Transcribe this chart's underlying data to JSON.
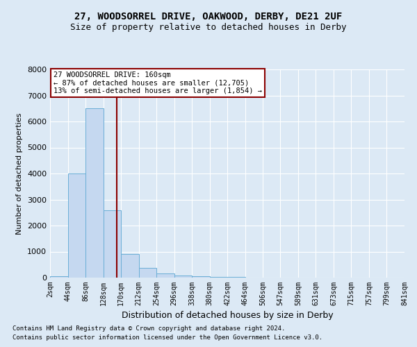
{
  "title_line1": "27, WOODSORREL DRIVE, OAKWOOD, DERBY, DE21 2UF",
  "title_line2": "Size of property relative to detached houses in Derby",
  "xlabel": "Distribution of detached houses by size in Derby",
  "ylabel": "Number of detached properties",
  "bin_edges": [
    2,
    44,
    86,
    128,
    170,
    212,
    254,
    296,
    338,
    380,
    422,
    464,
    506,
    547,
    589,
    631,
    673,
    715,
    757,
    799,
    841
  ],
  "bar_heights": [
    50,
    4000,
    6500,
    2600,
    900,
    380,
    160,
    80,
    55,
    30,
    15,
    5,
    3,
    2,
    2,
    1,
    1,
    1,
    1,
    1
  ],
  "bar_color": "#c5d8f0",
  "bar_edge_color": "#6aaed6",
  "vline_x": 160,
  "vline_color": "#8b0000",
  "ylim": [
    0,
    8000
  ],
  "yticks": [
    0,
    1000,
    2000,
    3000,
    4000,
    5000,
    6000,
    7000,
    8000
  ],
  "annotation_text": "27 WOODSORREL DRIVE: 160sqm\n← 87% of detached houses are smaller (12,705)\n13% of semi-detached houses are larger (1,854) →",
  "annotation_box_color": "#ffffff",
  "annotation_box_edge_color": "#8b0000",
  "footer_line1": "Contains HM Land Registry data © Crown copyright and database right 2024.",
  "footer_line2": "Contains public sector information licensed under the Open Government Licence v3.0.",
  "background_color": "#dce9f5",
  "plot_background_color": "#dce9f5",
  "grid_color": "#ffffff",
  "title_fontsize": 10,
  "subtitle_fontsize": 9,
  "ylabel_fontsize": 8,
  "xlabel_fontsize": 9,
  "tick_fontsize": 7,
  "ytick_fontsize": 8,
  "footer_fontsize": 6.5,
  "annotation_fontsize": 7.5
}
